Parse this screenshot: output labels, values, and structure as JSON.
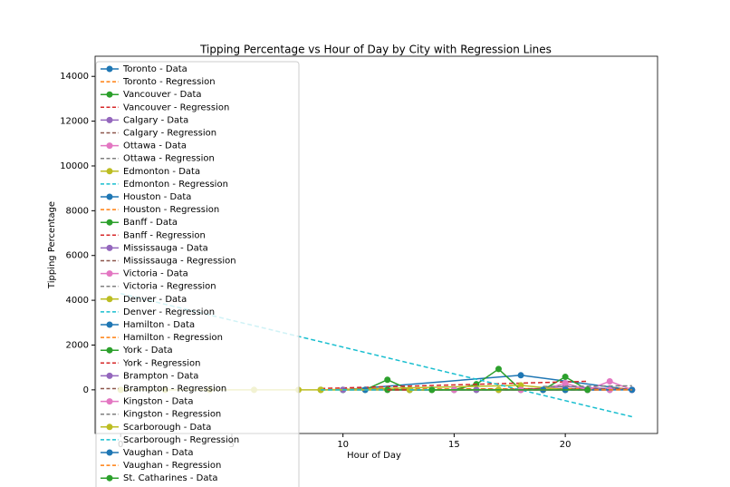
{
  "chart_data": {
    "type": "line",
    "title": "Tipping Percentage vs Hour of Day by City with Regression Lines",
    "x_label": "Hour of Day",
    "y_label": "Tipping Percentage",
    "xlim": [
      -1.15,
      24.15
    ],
    "xticks": [
      0,
      5,
      10,
      15,
      20
    ],
    "ylim": [
      -1950,
      14900
    ],
    "yticks": [
      0,
      2000,
      4000,
      6000,
      8000,
      10000,
      12000,
      14000
    ],
    "legend": "upper left",
    "series": [
      {
        "name": "Toronto - Data",
        "color": "#1f77b4",
        "dashed": false,
        "x": [
          10,
          18,
          23
        ],
        "values": [
          0,
          650,
          0
        ]
      },
      {
        "name": "Toronto - Regression",
        "color": "#ff7f0e",
        "dashed": true,
        "x": [
          10,
          23
        ],
        "values": [
          30,
          60
        ]
      },
      {
        "name": "Vancouver - Data",
        "color": "#2ca02c",
        "dashed": false,
        "x": [
          9,
          10,
          11,
          12,
          13,
          14,
          15,
          16,
          17,
          18,
          19,
          20,
          21
        ],
        "values": [
          0,
          0,
          0,
          450,
          0,
          0,
          0,
          250,
          930,
          0,
          0,
          580,
          0
        ]
      },
      {
        "name": "Vancouver - Regression",
        "color": "#d62728",
        "dashed": true,
        "x": [
          9,
          21
        ],
        "values": [
          60,
          380
        ]
      },
      {
        "name": "Calgary - Data",
        "color": "#9467bd",
        "dashed": false,
        "x": [
          18,
          20,
          23
        ],
        "values": [
          0,
          150,
          0
        ]
      },
      {
        "name": "Calgary - Regression",
        "color": "#8c564b",
        "dashed": true,
        "x": [
          18,
          23
        ],
        "values": [
          50,
          30
        ]
      },
      {
        "name": "Ottawa - Data",
        "color": "#e377c2",
        "dashed": false,
        "x": [
          19,
          20,
          21,
          22,
          23
        ],
        "values": [
          0,
          300,
          0,
          380,
          0
        ]
      },
      {
        "name": "Ottawa - Regression",
        "color": "#7f7f7f",
        "dashed": true,
        "x": [
          19,
          23
        ],
        "values": [
          150,
          180
        ]
      },
      {
        "name": "Edmonton - Data",
        "color": "#bcbd22",
        "dashed": false,
        "x": [
          0,
          2,
          4,
          6,
          8,
          9,
          18,
          20
        ],
        "values": [
          0,
          0,
          0,
          0,
          0,
          0,
          200,
          0
        ]
      },
      {
        "name": "Edmonton - Regression",
        "color": "#17becf",
        "dashed": true,
        "x": [
          0,
          23
        ],
        "values": [
          4300,
          -1200
        ]
      },
      {
        "name": "Houston - Data",
        "color": "#1f77b4",
        "dashed": false,
        "x": [
          11,
          14,
          17
        ],
        "values": [
          0,
          0,
          0
        ]
      },
      {
        "name": "Houston - Regression",
        "color": "#ff7f0e",
        "dashed": true,
        "x": [
          11,
          17
        ],
        "values": [
          10,
          20
        ]
      },
      {
        "name": "Banff - Data",
        "color": "#2ca02c",
        "dashed": false,
        "x": [
          13,
          16,
          19
        ],
        "values": [
          0,
          0,
          0
        ]
      },
      {
        "name": "Banff - Regression",
        "color": "#d62728",
        "dashed": true,
        "x": [
          13,
          19
        ],
        "values": [
          0,
          30
        ]
      },
      {
        "name": "Mississauga - Data",
        "color": "#9467bd",
        "dashed": false,
        "x": [
          10,
          15,
          20
        ],
        "values": [
          0,
          0,
          0
        ]
      },
      {
        "name": "Mississauga - Regression",
        "color": "#8c564b",
        "dashed": true,
        "x": [
          10,
          20
        ],
        "values": [
          20,
          0
        ]
      },
      {
        "name": "Victoria - Data",
        "color": "#e377c2",
        "dashed": false,
        "x": [
          12,
          18
        ],
        "values": [
          0,
          0
        ]
      },
      {
        "name": "Victoria - Regression",
        "color": "#7f7f7f",
        "dashed": true,
        "x": [
          12,
          18
        ],
        "values": [
          0,
          10
        ]
      },
      {
        "name": "Denver - Data",
        "color": "#bcbd22",
        "dashed": false,
        "x": [
          9,
          14
        ],
        "values": [
          0,
          0
        ]
      },
      {
        "name": "Denver - Regression",
        "color": "#17becf",
        "dashed": true,
        "x": [
          9,
          14
        ],
        "values": [
          0,
          0
        ]
      },
      {
        "name": "Hamilton - Data",
        "color": "#1f77b4",
        "dashed": false,
        "x": [
          19,
          22
        ],
        "values": [
          0,
          0
        ]
      },
      {
        "name": "Hamilton - Regression",
        "color": "#ff7f0e",
        "dashed": true,
        "x": [
          19,
          22
        ],
        "values": [
          0,
          0
        ]
      },
      {
        "name": "York - Data",
        "color": "#2ca02c",
        "dashed": false,
        "x": [
          12,
          20
        ],
        "values": [
          0,
          0
        ]
      },
      {
        "name": "York - Regression",
        "color": "#d62728",
        "dashed": true,
        "x": [
          12,
          20
        ],
        "values": [
          0,
          0
        ]
      },
      {
        "name": "Brampton - Data",
        "color": "#9467bd",
        "dashed": false,
        "x": [
          16,
          21
        ],
        "values": [
          0,
          0
        ]
      },
      {
        "name": "Brampton - Regression",
        "color": "#8c564b",
        "dashed": true,
        "x": [
          16,
          21
        ],
        "values": [
          0,
          0
        ]
      },
      {
        "name": "Kingston - Data",
        "color": "#e377c2",
        "dashed": false,
        "x": [
          15,
          22
        ],
        "values": [
          0,
          0
        ]
      },
      {
        "name": "Kingston - Regression",
        "color": "#7f7f7f",
        "dashed": true,
        "x": [
          15,
          22
        ],
        "values": [
          0,
          0
        ]
      },
      {
        "name": "Scarborough - Data",
        "color": "#bcbd22",
        "dashed": false,
        "x": [
          13,
          17
        ],
        "values": [
          0,
          0
        ]
      },
      {
        "name": "Scarborough - Regression",
        "color": "#17becf",
        "dashed": true,
        "x": [
          13,
          17
        ],
        "values": [
          0,
          0
        ]
      },
      {
        "name": "Vaughan - Data",
        "color": "#1f77b4",
        "dashed": false,
        "x": [
          20,
          23
        ],
        "values": [
          0,
          0
        ]
      },
      {
        "name": "Vaughan - Regression",
        "color": "#ff7f0e",
        "dashed": true,
        "x": [
          20,
          23
        ],
        "values": [
          0,
          0
        ]
      },
      {
        "name": "St. Catharines - Data",
        "color": "#2ca02c",
        "dashed": false,
        "x": [
          14,
          21
        ],
        "values": [
          0,
          0
        ]
      }
    ]
  }
}
